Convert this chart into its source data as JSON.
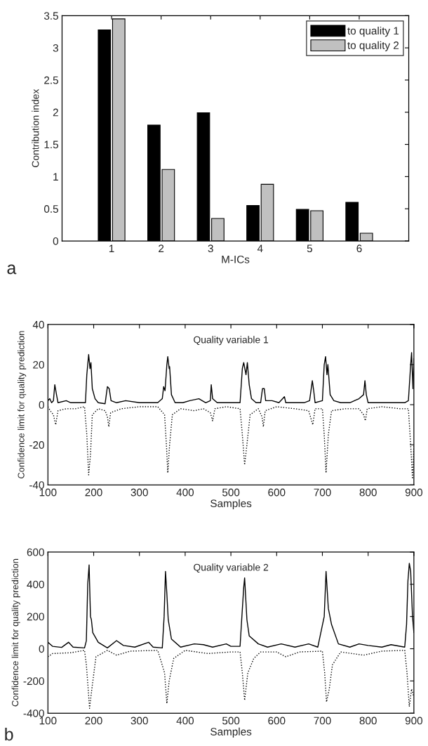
{
  "chart_data": [
    {
      "type": "bar",
      "xlabel": "M-ICs",
      "ylabel": "Contribution index",
      "categories": [
        "1",
        "2",
        "3",
        "4",
        "5",
        "6"
      ],
      "series": [
        {
          "name": "to quality 1",
          "color": "#000000",
          "values": [
            3.28,
            1.8,
            1.99,
            0.55,
            0.49,
            0.6
          ]
        },
        {
          "name": "to quality 2",
          "color": "#c0c0c0",
          "values": [
            3.45,
            1.11,
            0.35,
            0.88,
            0.47,
            0.12
          ]
        }
      ],
      "ylim": [
        0,
        3.5
      ],
      "yticks": [
        0,
        0.5,
        1,
        1.5,
        2,
        2.5,
        3,
        3.5
      ],
      "legend": "top right",
      "grid": false,
      "annotations": [
        "a"
      ]
    },
    {
      "type": "line",
      "xlabel": "Samples",
      "ylabel": "Confidence limit for quality prediction",
      "xlim": [
        100,
        900
      ],
      "xticks": [
        100,
        200,
        300,
        400,
        500,
        600,
        700,
        800,
        900
      ],
      "ylim": [
        -40,
        40
      ],
      "yticks": [
        -40,
        -20,
        0,
        20,
        40
      ],
      "grid": false,
      "legend": false,
      "annotations": [
        "Quality variable 1"
      ],
      "series": [
        {
          "color": "#000000",
          "line_style": "solid",
          "x": [
            100,
            104,
            108,
            112,
            115,
            118,
            122,
            140,
            150,
            170,
            182,
            185,
            189,
            192,
            194,
            197,
            203,
            210,
            225,
            230,
            234,
            238,
            250,
            270,
            300,
            320,
            340,
            350,
            353,
            356,
            360,
            362,
            365,
            366,
            370,
            378,
            395,
            410,
            430,
            445,
            455,
            457,
            460,
            470,
            490,
            505,
            520,
            525,
            528,
            533,
            536,
            540,
            545,
            555,
            565,
            569,
            573,
            576,
            590,
            605,
            617,
            620,
            640,
            660,
            672,
            678,
            681,
            684,
            700,
            704,
            707,
            710,
            712,
            717,
            725,
            740,
            760,
            780,
            790,
            793,
            796,
            800,
            820,
            850,
            880,
            888,
            893,
            895,
            898,
            900
          ],
          "values": [
            2,
            3,
            1,
            2,
            10,
            6,
            1,
            2,
            1,
            1,
            1,
            15,
            25,
            18,
            21,
            8,
            3,
            1,
            0.5,
            9,
            8,
            2,
            1,
            2,
            1,
            1,
            1,
            3,
            9,
            7,
            20,
            24,
            18,
            19,
            5,
            1,
            1,
            2,
            3,
            1,
            2,
            10,
            3,
            1,
            1,
            1,
            1,
            18,
            21,
            15,
            21,
            10,
            3,
            1,
            1,
            8,
            8,
            2,
            2,
            1,
            4,
            1,
            1,
            1,
            2,
            12,
            7,
            1,
            2,
            20,
            24,
            15,
            20,
            5,
            2,
            1,
            1,
            3,
            5,
            12,
            5,
            1,
            1,
            1,
            1,
            2,
            20,
            26,
            8,
            23
          ]
        },
        {
          "color": "#000000",
          "line_style": "dotted",
          "x": [
            100,
            105,
            112,
            117,
            122,
            140,
            160,
            180,
            185,
            189,
            193,
            197,
            210,
            225,
            230,
            233,
            237,
            260,
            300,
            340,
            355,
            359,
            362,
            366,
            372,
            390,
            420,
            440,
            455,
            460,
            465,
            490,
            520,
            525,
            530,
            535,
            542,
            560,
            568,
            571,
            575,
            600,
            640,
            670,
            679,
            684,
            700,
            704,
            708,
            713,
            720,
            750,
            780,
            790,
            794,
            798,
            830,
            870,
            888,
            893,
            897,
            900
          ],
          "values": [
            -1,
            -3,
            -5,
            -10,
            -3,
            -2,
            -2,
            -1,
            -15,
            -35,
            -25,
            -5,
            -2,
            -3,
            -6,
            -11,
            -4,
            -2,
            -1,
            -1,
            -5,
            -20,
            -34,
            -20,
            -5,
            -2,
            -3,
            -2,
            -4,
            -8,
            -2,
            -1,
            -2,
            -15,
            -30,
            -20,
            -5,
            -2,
            -6,
            -11,
            -3,
            -1,
            -2,
            -3,
            -10,
            -2,
            -2,
            -15,
            -34,
            -15,
            -3,
            -2,
            -2,
            -5,
            -8,
            -2,
            -1,
            -2,
            -2,
            -20,
            -37,
            -20
          ]
        }
      ]
    },
    {
      "type": "line",
      "xlabel": "Samples",
      "ylabel": "Confidence limit for quality prediction",
      "xlim": [
        100,
        900
      ],
      "xticks": [
        100,
        200,
        300,
        400,
        500,
        600,
        700,
        800,
        900
      ],
      "ylim": [
        -400,
        600
      ],
      "yticks": [
        -400,
        -200,
        0,
        200,
        400,
        600
      ],
      "grid": false,
      "legend": false,
      "annotations": [
        "Quality variable 2",
        "b"
      ],
      "series": [
        {
          "color": "#000000",
          "line_style": "solid",
          "x": [
            100,
            110,
            130,
            145,
            155,
            180,
            184,
            187,
            190,
            193,
            195,
            198,
            210,
            230,
            250,
            265,
            290,
            320,
            330,
            350,
            354,
            357,
            360,
            363,
            370,
            390,
            420,
            440,
            460,
            490,
            500,
            520,
            524,
            528,
            530,
            535,
            540,
            560,
            580,
            610,
            640,
            670,
            690,
            704,
            708,
            713,
            720,
            735,
            760,
            780,
            800,
            830,
            850,
            880,
            884,
            887,
            890,
            893,
            897,
            900
          ],
          "values": [
            40,
            15,
            8,
            40,
            10,
            5,
            50,
            400,
            520,
            200,
            180,
            100,
            40,
            5,
            50,
            20,
            10,
            40,
            10,
            5,
            200,
            480,
            340,
            180,
            60,
            10,
            30,
            25,
            10,
            30,
            15,
            15,
            200,
            380,
            440,
            180,
            80,
            30,
            10,
            30,
            10,
            30,
            10,
            200,
            480,
            250,
            150,
            30,
            10,
            30,
            20,
            10,
            25,
            10,
            150,
            420,
            530,
            480,
            200,
            100
          ]
        },
        {
          "color": "#000000",
          "line_style": "dotted",
          "x": [
            100,
            110,
            150,
            180,
            184,
            188,
            191,
            196,
            205,
            230,
            250,
            280,
            340,
            355,
            360,
            365,
            375,
            400,
            450,
            500,
            520,
            525,
            530,
            537,
            550,
            565,
            600,
            620,
            650,
            700,
            705,
            709,
            715,
            722,
            740,
            790,
            830,
            880,
            885,
            890,
            895,
            900
          ],
          "values": [
            -50,
            -30,
            -25,
            -10,
            -100,
            -250,
            -370,
            -250,
            -50,
            -10,
            -40,
            -15,
            -10,
            -150,
            -340,
            -200,
            -60,
            -10,
            -30,
            -20,
            -20,
            -150,
            -320,
            -150,
            -60,
            -20,
            -20,
            -50,
            -20,
            -15,
            -150,
            -330,
            -250,
            -100,
            -20,
            -40,
            -15,
            -10,
            -150,
            -360,
            -250,
            -300
          ]
        }
      ]
    }
  ]
}
